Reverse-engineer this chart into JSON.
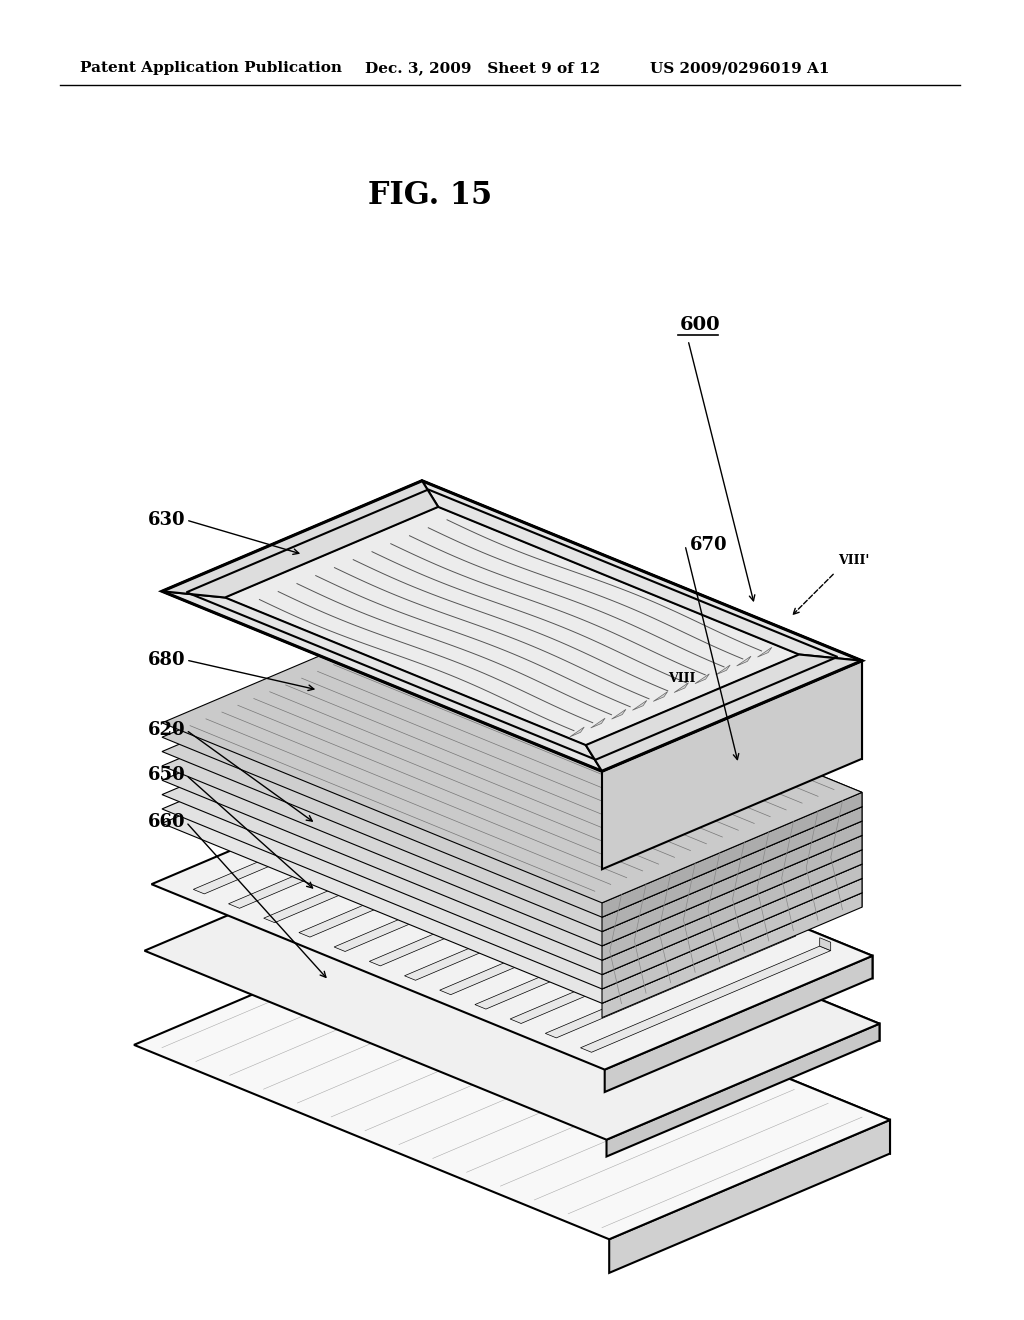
{
  "bg_color": "#ffffff",
  "title": "FIG. 15",
  "title_fontsize": 22,
  "header_left": "Patent Application Publication",
  "header_center": "Dec. 3, 2009   Sheet 9 of 12",
  "header_right": "US 2009/0296019 A1",
  "header_fontsize": 11,
  "label_600": "600",
  "label_630": "630",
  "label_670": "670",
  "label_680": "680",
  "label_620": "620",
  "label_650": "650",
  "label_660": "660",
  "line_color": "#000000"
}
